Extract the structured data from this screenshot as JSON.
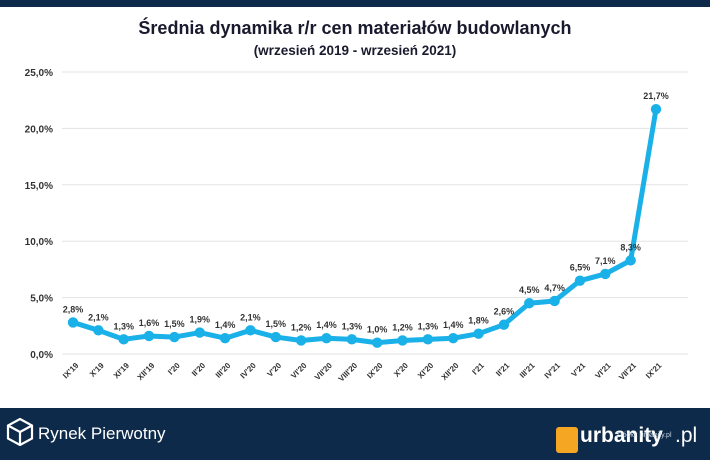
{
  "title": "Średnia dynamika r/r cen materiałów budowlanych",
  "subtitle": "(wrzesień 2019 - wrzesień 2021)",
  "chart_data": {
    "type": "line",
    "categories": [
      "IX'19",
      "X'19",
      "XI'19",
      "XII'19",
      "I'20",
      "II'20",
      "III'20",
      "IV'20",
      "V'20",
      "VI'20",
      "VII'20",
      "VIII'20",
      "IX'20",
      "X'20",
      "XI'20",
      "XII'20",
      "I'21",
      "II'21",
      "III'21",
      "IV'21",
      "V'21",
      "VI'21",
      "VII'21",
      "IX'21"
    ],
    "values": [
      2.8,
      2.1,
      1.3,
      1.6,
      1.5,
      1.9,
      1.4,
      2.1,
      1.5,
      1.2,
      1.4,
      1.3,
      1.0,
      1.2,
      1.3,
      1.4,
      1.8,
      2.6,
      4.5,
      4.7,
      6.5,
      7.1,
      8.3,
      21.7
    ],
    "data_labels": [
      "2,8%",
      "2,1%",
      "1,3%",
      "1,6%",
      "1,5%",
      "1,9%",
      "1,4%",
      "2,1%",
      "1,5%",
      "1,2%",
      "1,4%",
      "1,3%",
      "1,0%",
      "1,2%",
      "1,3%",
      "1,4%",
      "1,8%",
      "2,6%",
      "4,5%",
      "4,7%",
      "6,5%",
      "7,1%",
      "8,3%",
      "21,7%"
    ],
    "y_ticks": [
      0,
      5,
      10,
      15,
      20,
      25
    ],
    "y_tick_labels": [
      "0,0%",
      "5,0%",
      "10,0%",
      "15,0%",
      "20,0%",
      "25,0%"
    ],
    "ylim": [
      0,
      25
    ],
    "grid": true,
    "legend": "none",
    "line_color": "#1ab0e8"
  },
  "footer": {
    "brand": "Rynek Pierwotny",
    "urbanity": "urbanity",
    "urbanity_tld": ".pl",
    "source": "Źródło: urbanity.pl"
  }
}
